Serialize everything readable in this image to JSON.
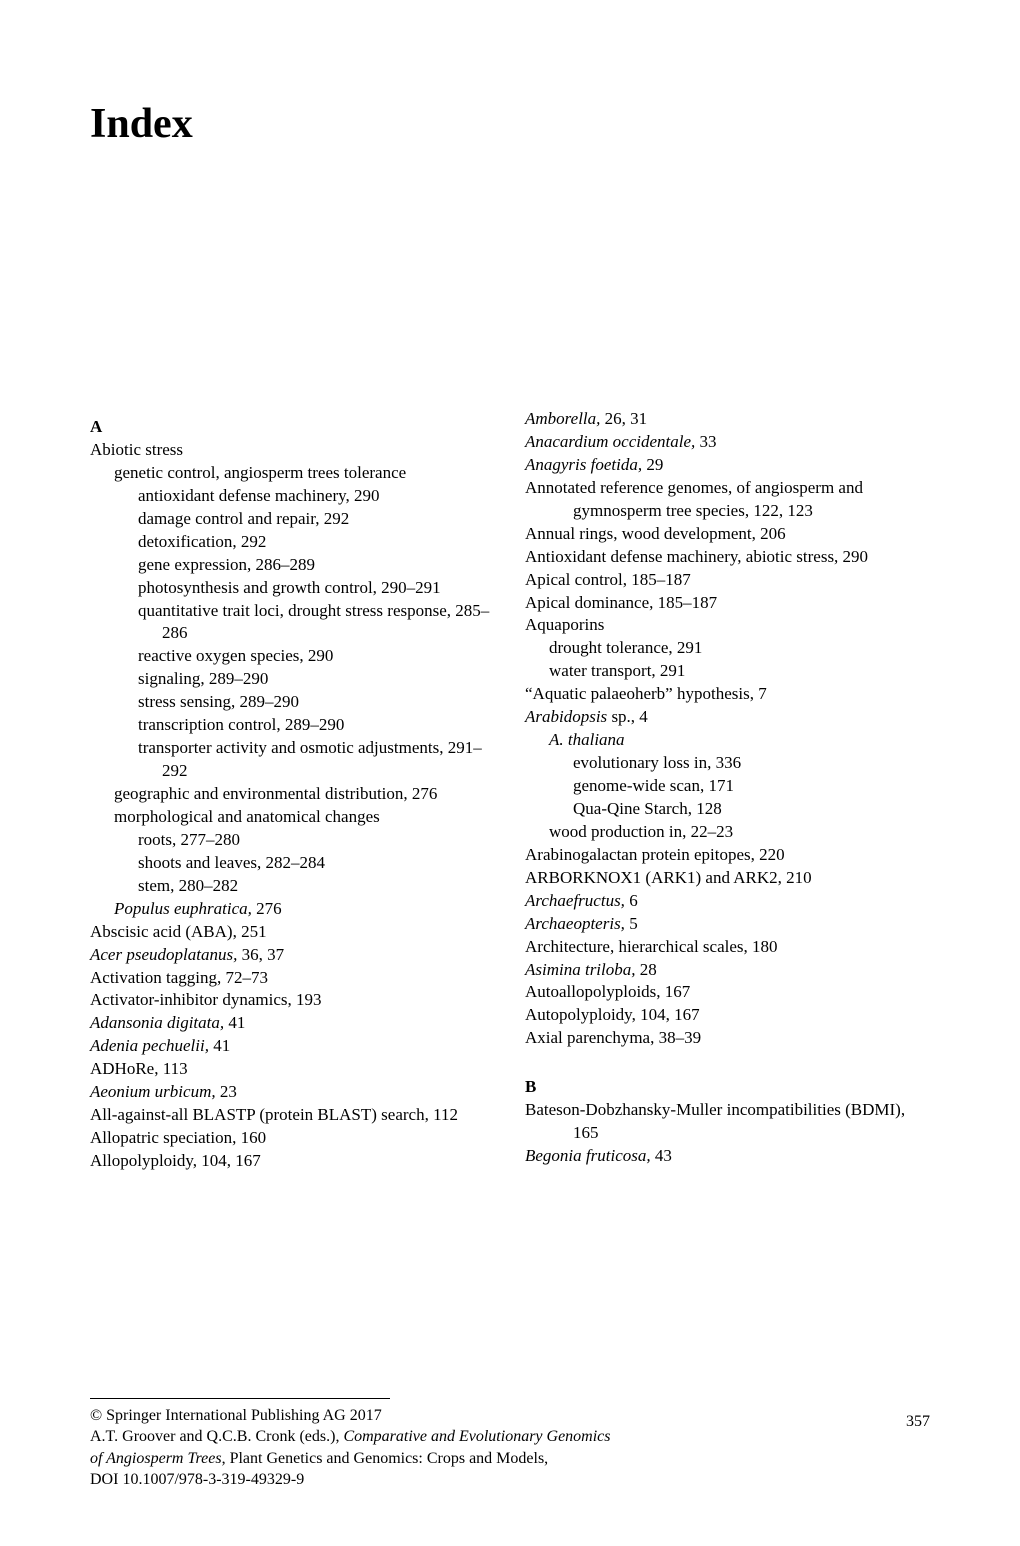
{
  "title": "Index",
  "left": {
    "letter": "A",
    "lines": [
      {
        "cls": "top",
        "t": "Abiotic stress"
      },
      {
        "cls": "sub1",
        "t": "genetic control, angiosperm trees tolerance"
      },
      {
        "cls": "sub2",
        "t": "antioxidant defense machinery, 290"
      },
      {
        "cls": "sub2",
        "t": "damage control and repair, 292"
      },
      {
        "cls": "sub2",
        "t": "detoxification, 292"
      },
      {
        "cls": "sub2",
        "t": "gene expression, 286–289"
      },
      {
        "cls": "sub2",
        "t": "photosynthesis and growth control, 290–291"
      },
      {
        "cls": "sub2",
        "t": "quantitative trait loci, drought stress response, 285–286"
      },
      {
        "cls": "sub2",
        "t": "reactive oxygen species, 290"
      },
      {
        "cls": "sub2",
        "t": "signaling, 289–290"
      },
      {
        "cls": "sub2",
        "t": "stress sensing, 289–290"
      },
      {
        "cls": "sub2",
        "t": "transcription control, 289–290"
      },
      {
        "cls": "sub2",
        "t": "transporter activity and osmotic adjustments, 291–292"
      },
      {
        "cls": "sub1",
        "t": "geographic and environmental distribution, 276"
      },
      {
        "cls": "sub1",
        "t": "morphological and anatomical changes"
      },
      {
        "cls": "sub2",
        "t": "roots, 277–280"
      },
      {
        "cls": "sub2",
        "t": "shoots and leaves, 282–284"
      },
      {
        "cls": "sub2",
        "t": "stem, 280–282"
      },
      {
        "cls": "sub1",
        "html": "<em>Populus euphratica,</em> 276"
      },
      {
        "cls": "top",
        "t": "Abscisic acid (ABA), 251"
      },
      {
        "cls": "top",
        "html": "<em>Acer pseudoplatanus,</em> 36, 37"
      },
      {
        "cls": "top",
        "t": "Activation tagging, 72–73"
      },
      {
        "cls": "top",
        "t": "Activator-inhibitor dynamics, 193"
      },
      {
        "cls": "top",
        "html": "<em>Adansonia digitata,</em> 41"
      },
      {
        "cls": "top",
        "html": "<em>Adenia pechuelii,</em> 41"
      },
      {
        "cls": "top",
        "t": "ADHoRe, 113"
      },
      {
        "cls": "top",
        "html": "<em>Aeonium urbicum,</em> 23"
      },
      {
        "cls": "hang",
        "t": "All-against-all BLASTP (protein BLAST) search, 112"
      },
      {
        "cls": "top",
        "t": "Allopatric speciation, 160"
      },
      {
        "cls": "top",
        "t": "Allopolyploidy, 104, 167"
      }
    ]
  },
  "right": {
    "lines": [
      {
        "cls": "top",
        "html": "<em>Amborella,</em> 26, 31"
      },
      {
        "cls": "top",
        "html": "<em>Anacardium occidentale,</em> 33"
      },
      {
        "cls": "top",
        "html": "<em>Anagyris foetida,</em> 29"
      },
      {
        "cls": "hang",
        "t": "Annotated reference genomes, of angiosperm and gymnosperm tree species, 122, 123"
      },
      {
        "cls": "top",
        "t": "Annual rings, wood development, 206"
      },
      {
        "cls": "hang",
        "t": "Antioxidant defense machinery, abiotic stress, 290"
      },
      {
        "cls": "top",
        "t": "Apical control, 185–187"
      },
      {
        "cls": "top",
        "t": "Apical dominance, 185–187"
      },
      {
        "cls": "top",
        "t": "Aquaporins"
      },
      {
        "cls": "sub1",
        "t": "drought tolerance, 291"
      },
      {
        "cls": "sub1",
        "t": "water transport, 291"
      },
      {
        "cls": "top",
        "t": "“Aquatic palaeoherb” hypothesis, 7"
      },
      {
        "cls": "top",
        "html": "<em>Arabidopsis</em> sp., 4"
      },
      {
        "cls": "sub1",
        "html": "<em>A. thaliana</em>"
      },
      {
        "cls": "sub2",
        "t": "evolutionary loss in, 336"
      },
      {
        "cls": "sub2",
        "t": "genome-wide scan, 171"
      },
      {
        "cls": "sub2",
        "t": "Qua-Qine Starch, 128"
      },
      {
        "cls": "sub1",
        "t": "wood production in, 22–23"
      },
      {
        "cls": "top",
        "t": "Arabinogalactan protein epitopes, 220"
      },
      {
        "cls": "top",
        "t": "ARBORKNOX1 (ARK1) and ARK2, 210"
      },
      {
        "cls": "top",
        "html": "<em>Archaefructus,</em> 6"
      },
      {
        "cls": "top",
        "html": "<em>Archaeopteris,</em> 5"
      },
      {
        "cls": "top",
        "t": "Architecture, hierarchical scales, 180"
      },
      {
        "cls": "top",
        "html": "<em>Asimina triloba,</em> 28"
      },
      {
        "cls": "top",
        "t": "Autoallopolyploids, 167"
      },
      {
        "cls": "top",
        "t": "Autopolyploidy, 104, 167"
      },
      {
        "cls": "top",
        "t": "Axial parenchyma, 38–39"
      }
    ],
    "letterB": "B",
    "linesB": [
      {
        "cls": "hang",
        "t": "Bateson-Dobzhansky-Muller incompatibilities (BDMI), 165"
      },
      {
        "cls": "top",
        "html": "<em>Begonia fruticosa,</em> 43"
      }
    ]
  },
  "footer": {
    "copyright": "© Springer International Publishing AG 2017",
    "line2a": "A.T. Groover and Q.C.B. Cronk (eds.), ",
    "line2b": "Comparative and Evolutionary Genomics",
    "line3a": "of Angiosperm Trees",
    "line3b": ", Plant Genetics and Genomics: Crops and Models,",
    "doi": "DOI 10.1007/978-3-319-49329-9",
    "page": "357"
  }
}
